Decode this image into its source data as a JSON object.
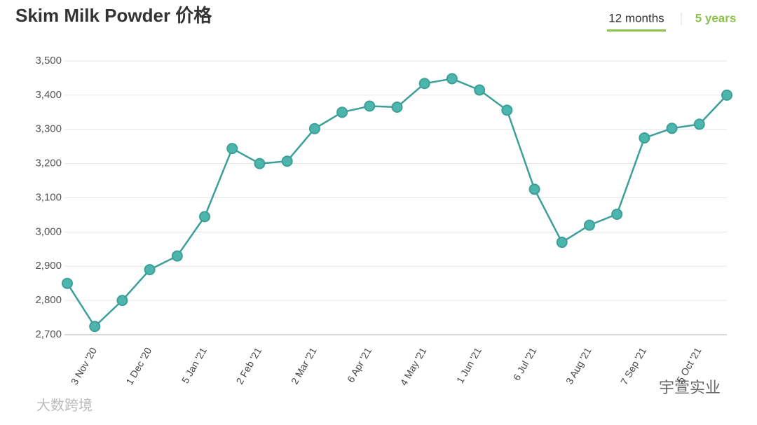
{
  "chart_data": {
    "type": "line",
    "title": "Skim Milk Powder 价格",
    "tabs": [
      "12 months",
      "5 years"
    ],
    "watermarks": [
      "大数跨境",
      "宇萱实业"
    ],
    "categories": [
      null,
      "3 Nov '20",
      null,
      "1 Dec '20",
      null,
      "5 Jan '21",
      null,
      "2 Feb '21",
      null,
      "2 Mar '21",
      null,
      "6 Apr '21",
      null,
      "4 May '21",
      null,
      "1 Jun '21",
      null,
      "6 Jul '21",
      null,
      "3 Aug '21",
      null,
      "7 Sep '21",
      null,
      "5 Oct '21",
      null
    ],
    "values": [
      2850,
      2724,
      2800,
      2890,
      2930,
      3045,
      3244,
      3200,
      3207,
      3302,
      3350,
      3368,
      3365,
      3434,
      3448,
      3415,
      3356,
      3125,
      2970,
      3020,
      3052,
      3275,
      3303,
      3315,
      3400
    ],
    "color": "#3d9f9a",
    "marker_color": "#4db6ac",
    "ylim": [
      2700,
      3500
    ],
    "yticks": [
      {
        "value": 2700,
        "label": "2,700"
      },
      {
        "value": 2800,
        "label": "2,800"
      },
      {
        "value": 2900,
        "label": "2,900"
      },
      {
        "value": 3000,
        "label": "3,000"
      },
      {
        "value": 3100,
        "label": "3,100"
      },
      {
        "value": 3200,
        "label": "3,200"
      },
      {
        "value": 3300,
        "label": "3,300"
      },
      {
        "value": 3400,
        "label": "3,400"
      },
      {
        "value": 3500,
        "label": "3,500"
      }
    ],
    "grid": true
  }
}
